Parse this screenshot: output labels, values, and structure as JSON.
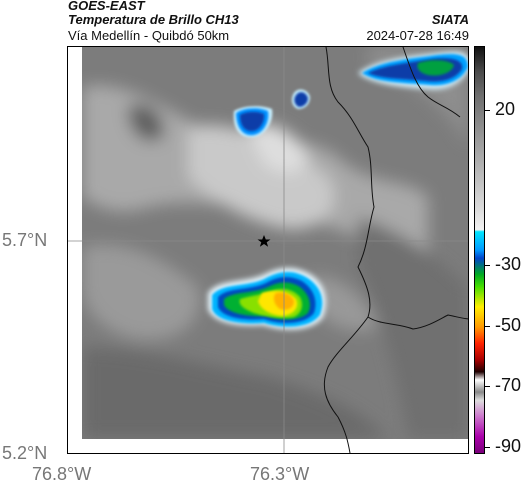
{
  "header": {
    "satellite": "GOES-EAST",
    "product": "Temperatura de Brillo CH13",
    "route": "Vía Medellín - Quibdó 50km",
    "organization": "SIATA",
    "datetime": "2024-07-28 16:49"
  },
  "map": {
    "lat_labels": [
      "5.7°N",
      "5.2°N"
    ],
    "lon_labels": [
      "76.8°W",
      "76.3°W"
    ],
    "marker": "star-icon"
  },
  "colorbar": {
    "ticks": [
      "20",
      "-30",
      "-50",
      "-70",
      "-90"
    ]
  }
}
